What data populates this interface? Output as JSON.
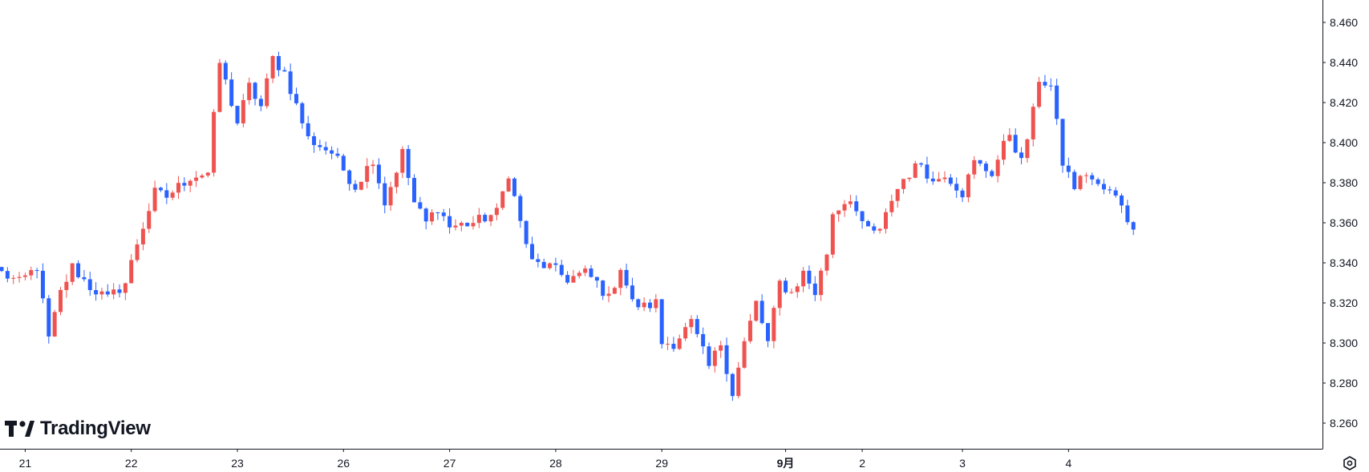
{
  "branding": {
    "logo_text": "TradingView"
  },
  "colors": {
    "up": "#ef5350",
    "down": "#2962ff",
    "axis_line": "#131722",
    "text": "#131722"
  },
  "chart_data": {
    "type": "candlestick",
    "title": "",
    "xlabel": "",
    "ylabel": "",
    "ylim": [
      8.25,
      8.468
    ],
    "y_ticks": [
      "8.460",
      "8.440",
      "8.420",
      "8.400",
      "8.380",
      "8.360",
      "8.340",
      "8.320",
      "8.300",
      "8.280",
      "8.260"
    ],
    "x_ticks": [
      {
        "label": "21",
        "index": 4
      },
      {
        "label": "22",
        "index": 22
      },
      {
        "label": "23",
        "index": 40
      },
      {
        "label": "26",
        "index": 58
      },
      {
        "label": "27",
        "index": 76
      },
      {
        "label": "28",
        "index": 94
      },
      {
        "label": "29",
        "index": 112
      },
      {
        "label": "9月",
        "index": 133
      },
      {
        "label": "2",
        "index": 146
      },
      {
        "label": "3",
        "index": 163
      },
      {
        "label": "4",
        "index": 181
      }
    ],
    "candles_count": 193,
    "anchors": [
      [
        0,
        8.335
      ],
      [
        3,
        8.33
      ],
      [
        6,
        8.338
      ],
      [
        8,
        8.302
      ],
      [
        10,
        8.325
      ],
      [
        12,
        8.338
      ],
      [
        15,
        8.328
      ],
      [
        18,
        8.322
      ],
      [
        21,
        8.33
      ],
      [
        23,
        8.35
      ],
      [
        26,
        8.375
      ],
      [
        28,
        8.373
      ],
      [
        32,
        8.383
      ],
      [
        35,
        8.385
      ],
      [
        37,
        8.44
      ],
      [
        40,
        8.41
      ],
      [
        42,
        8.428
      ],
      [
        44,
        8.418
      ],
      [
        46,
        8.442
      ],
      [
        48,
        8.435
      ],
      [
        52,
        8.402
      ],
      [
        56,
        8.395
      ],
      [
        60,
        8.378
      ],
      [
        63,
        8.392
      ],
      [
        65,
        8.37
      ],
      [
        68,
        8.395
      ],
      [
        70,
        8.37
      ],
      [
        72,
        8.36
      ],
      [
        74,
        8.368
      ],
      [
        76,
        8.358
      ],
      [
        80,
        8.36
      ],
      [
        84,
        8.365
      ],
      [
        86,
        8.385
      ],
      [
        88,
        8.36
      ],
      [
        90,
        8.34
      ],
      [
        93,
        8.338
      ],
      [
        96,
        8.332
      ],
      [
        99,
        8.335
      ],
      [
        101,
        8.33
      ],
      [
        103,
        8.322
      ],
      [
        105,
        8.338
      ],
      [
        107,
        8.32
      ],
      [
        109,
        8.318
      ],
      [
        111,
        8.32
      ],
      [
        112,
        8.3
      ],
      [
        114,
        8.3
      ],
      [
        117,
        8.31
      ],
      [
        120,
        8.288
      ],
      [
        122,
        8.3
      ],
      [
        124,
        8.275
      ],
      [
        126,
        8.3
      ],
      [
        128,
        8.32
      ],
      [
        130,
        8.3
      ],
      [
        132,
        8.33
      ],
      [
        134,
        8.325
      ],
      [
        136,
        8.335
      ],
      [
        138,
        8.325
      ],
      [
        140,
        8.345
      ],
      [
        141,
        8.365
      ],
      [
        144,
        8.373
      ],
      [
        146,
        8.358
      ],
      [
        149,
        8.355
      ],
      [
        151,
        8.372
      ],
      [
        153,
        8.382
      ],
      [
        156,
        8.39
      ],
      [
        158,
        8.38
      ],
      [
        160,
        8.385
      ],
      [
        163,
        8.375
      ],
      [
        165,
        8.39
      ],
      [
        168,
        8.385
      ],
      [
        171,
        8.405
      ],
      [
        173,
        8.39
      ],
      [
        175,
        8.415
      ],
      [
        176,
        8.432
      ],
      [
        178,
        8.428
      ],
      [
        180,
        8.39
      ],
      [
        182,
        8.378
      ],
      [
        184,
        8.385
      ],
      [
        186,
        8.378
      ],
      [
        188,
        8.375
      ],
      [
        190,
        8.37
      ],
      [
        192,
        8.355
      ]
    ]
  }
}
